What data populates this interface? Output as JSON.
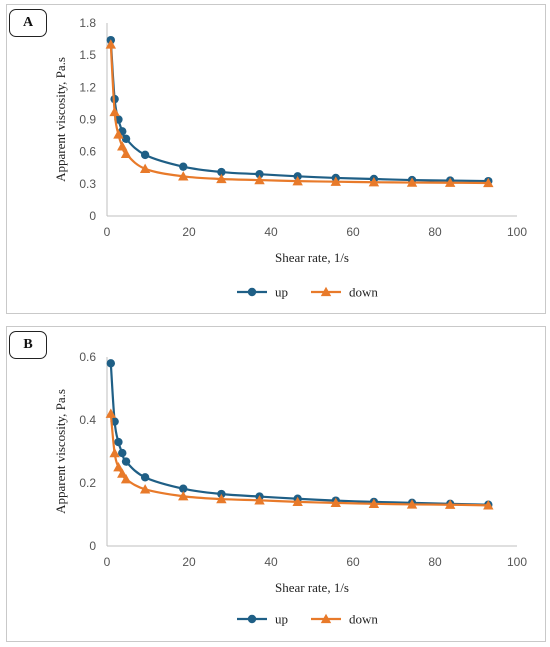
{
  "chart_data": [
    {
      "panel_label": "A",
      "type": "line",
      "xlabel": "Shear rate, 1/s",
      "ylabel": "Apparent viscosity, Pa.s",
      "xlim": [
        0,
        100
      ],
      "ylim": [
        0,
        1.8
      ],
      "xticks": [
        "0",
        "20",
        "40",
        "60",
        "80",
        "100"
      ],
      "yticks": [
        "0",
        "0.3",
        "0.6",
        "0.9",
        "1.2",
        "1.5",
        "1.8"
      ],
      "grid": false,
      "legend_position": "bottom",
      "series": [
        {
          "name": "up",
          "color": "#1f5f86",
          "marker": "circle",
          "x": [
            0.93,
            1.86,
            2.79,
            3.72,
            4.65,
            9.3,
            18.6,
            27.9,
            37.2,
            46.5,
            55.8,
            65.1,
            74.4,
            83.7,
            93.0
          ],
          "y": [
            1.64,
            1.09,
            0.9,
            0.79,
            0.72,
            0.57,
            0.46,
            0.41,
            0.39,
            0.37,
            0.355,
            0.345,
            0.335,
            0.33,
            0.325
          ]
        },
        {
          "name": "down",
          "color": "#e87a2a",
          "marker": "triangle",
          "x": [
            0.93,
            1.86,
            2.79,
            3.72,
            4.65,
            9.3,
            18.6,
            27.9,
            37.2,
            46.5,
            55.8,
            65.1,
            74.4,
            83.7,
            93.0
          ],
          "y": [
            1.6,
            0.97,
            0.76,
            0.65,
            0.58,
            0.44,
            0.37,
            0.345,
            0.335,
            0.325,
            0.32,
            0.315,
            0.312,
            0.31,
            0.308
          ]
        }
      ]
    },
    {
      "panel_label": "B",
      "type": "line",
      "xlabel": "Shear rate, 1/s",
      "ylabel": "Apparent viscosity, Pa.s",
      "xlim": [
        0,
        100
      ],
      "ylim": [
        0,
        0.6
      ],
      "xticks": [
        "0",
        "20",
        "40",
        "60",
        "80",
        "100"
      ],
      "yticks": [
        "0",
        "0.2",
        "0.4",
        "0.6"
      ],
      "grid": false,
      "legend_position": "bottom",
      "series": [
        {
          "name": "up",
          "color": "#1f5f86",
          "marker": "circle",
          "x": [
            0.93,
            1.86,
            2.79,
            3.72,
            4.65,
            9.3,
            18.6,
            27.9,
            37.2,
            46.5,
            55.8,
            65.1,
            74.4,
            83.7,
            93.0
          ],
          "y": [
            0.58,
            0.395,
            0.33,
            0.295,
            0.268,
            0.218,
            0.182,
            0.165,
            0.157,
            0.15,
            0.144,
            0.14,
            0.137,
            0.134,
            0.131
          ]
        },
        {
          "name": "down",
          "color": "#e87a2a",
          "marker": "triangle",
          "x": [
            0.93,
            1.86,
            2.79,
            3.72,
            4.65,
            9.3,
            18.6,
            27.9,
            37.2,
            46.5,
            55.8,
            65.1,
            74.4,
            83.7,
            93.0
          ],
          "y": [
            0.42,
            0.295,
            0.25,
            0.23,
            0.212,
            0.18,
            0.158,
            0.149,
            0.145,
            0.14,
            0.137,
            0.134,
            0.132,
            0.131,
            0.129
          ]
        }
      ]
    }
  ]
}
